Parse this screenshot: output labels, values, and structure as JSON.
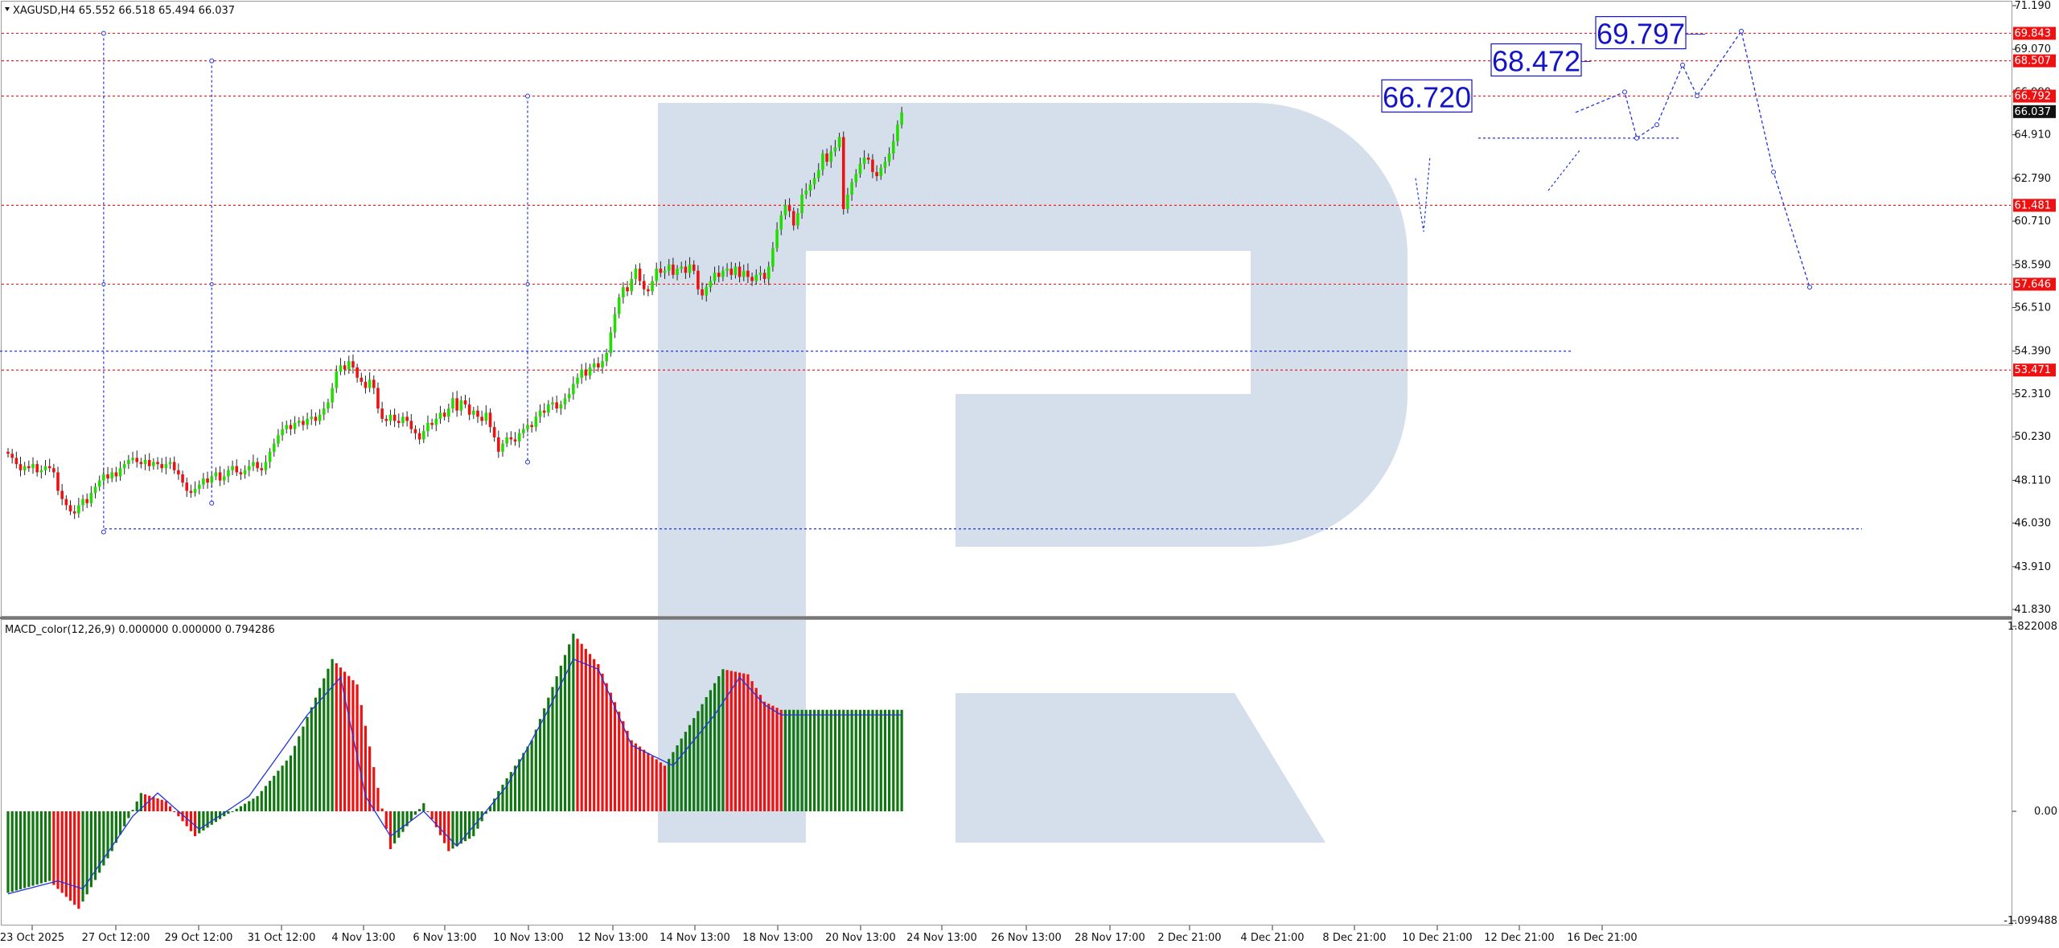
{
  "window": {
    "symbol_header": "XAGUSD,H4  65.552 66.518 65.494 66.037",
    "indicator_header": "MACD_color(12,26,9) 0.000000 0.000000 0.794286"
  },
  "colors": {
    "bull": "#22dd00",
    "bear": "#ee1111",
    "hist_up": "#117711",
    "hist_down": "#ee1111",
    "signal": "#2233dd",
    "level_line": "#ee2222",
    "forecast": "#2233dd",
    "watermark": "#d5dfeb",
    "current_price_bg": "#111111",
    "level_tag_bg": "#ee1111"
  },
  "chart_data": [
    {
      "type": "candlestick",
      "symbol": "XAGUSD",
      "timeframe": "H4",
      "ylim": [
        41.83,
        71.19
      ],
      "y_ticks": [
        "71.190",
        "69.070",
        "66.990",
        "64.910",
        "62.790",
        "60.710",
        "58.590",
        "56.510",
        "54.390",
        "52.310",
        "50.230",
        "48.110",
        "46.030",
        "43.910",
        "41.830"
      ],
      "x_ticks": [
        "23 Oct 2025",
        "27 Oct 12:00",
        "29 Oct 12:00",
        "31 Oct 12:00",
        "4 Nov 13:00",
        "6 Nov 13:00",
        "10 Nov 13:00",
        "12 Nov 13:00",
        "14 Nov 13:00",
        "18 Nov 13:00",
        "20 Nov 13:00",
        "24 Nov 13:00",
        "26 Nov 13:00",
        "28 Nov 17:00",
        "2 Dec 21:00",
        "4 Dec 21:00",
        "8 Dec 21:00",
        "10 Dec 21:00",
        "12 Dec 21:00",
        "16 Dec 21:00"
      ],
      "level_tags": [
        "69.843",
        "68.507",
        "66.792",
        "61.481",
        "57.646",
        "53.471"
      ],
      "current_price": "66.037",
      "closes": [
        49.4,
        49.2,
        48.9,
        48.6,
        48.8,
        48.7,
        48.9,
        48.5,
        48.6,
        48.8,
        48.7,
        48.5,
        47.6,
        47.2,
        46.9,
        46.6,
        46.5,
        46.9,
        47.2,
        47.0,
        47.5,
        47.8,
        48.1,
        48.4,
        48.2,
        48.5,
        48.3,
        48.7,
        48.9,
        49.1,
        49.2,
        49.0,
        48.9,
        49.1,
        48.8,
        49.0,
        48.9,
        48.7,
        48.9,
        49.0,
        48.6,
        48.4,
        48.0,
        47.6,
        47.5,
        47.7,
        47.9,
        48.2,
        48.0,
        48.3,
        48.5,
        48.1,
        48.3,
        48.6,
        48.8,
        48.5,
        48.4,
        48.6,
        48.8,
        49.0,
        48.7,
        48.6,
        49.0,
        49.5,
        49.9,
        50.3,
        50.6,
        50.8,
        50.6,
        50.9,
        51.0,
        50.8,
        51.1,
        51.2,
        51.0,
        51.3,
        51.6,
        51.9,
        52.6,
        53.4,
        53.7,
        53.5,
        53.9,
        53.6,
        53.1,
        52.9,
        52.6,
        53.0,
        52.6,
        51.6,
        51.1,
        51.0,
        51.3,
        51.0,
        50.9,
        51.2,
        51.0,
        50.6,
        50.4,
        50.1,
        50.5,
        50.9,
        50.8,
        51.1,
        51.4,
        51.2,
        51.6,
        52.1,
        51.5,
        52.0,
        51.8,
        51.3,
        51.5,
        51.2,
        51.0,
        51.4,
        50.7,
        50.2,
        49.5,
        49.9,
        50.2,
        50.1,
        50.0,
        50.4,
        50.6,
        50.8,
        50.7,
        51.2,
        51.5,
        51.4,
        51.8,
        51.9,
        51.6,
        51.8,
        52.1,
        52.3,
        52.8,
        53.1,
        53.5,
        53.2,
        53.6,
        53.8,
        53.6,
        53.9,
        54.3,
        55.3,
        56.2,
        57.0,
        57.5,
        57.3,
        57.9,
        58.4,
        57.8,
        57.4,
        57.3,
        57.8,
        58.4,
        58.2,
        58.3,
        58.6,
        58.1,
        58.4,
        58.5,
        58.2,
        58.6,
        58.3,
        57.4,
        57.1,
        57.5,
        57.8,
        58.2,
        58.0,
        58.3,
        58.4,
        58.1,
        58.5,
        58.0,
        58.3,
        58.0,
        57.8,
        58.1,
        58.2,
        57.9,
        58.5,
        59.4,
        60.3,
        61.0,
        61.5,
        61.2,
        60.5,
        61.1,
        62.0,
        62.2,
        62.5,
        62.8,
        63.2,
        64.0,
        63.6,
        64.1,
        64.3,
        64.8,
        61.3,
        62.0,
        62.6,
        63.0,
        63.5,
        63.8,
        63.7,
        63.1,
        62.9,
        63.3,
        63.6,
        64.0,
        64.6,
        65.4,
        66.0
      ]
    },
    {
      "type": "histogram",
      "name": "MACD_color(12,26,9)",
      "ylim": [
        -1.099488,
        1.822008
      ],
      "y_ticks": [
        "1.822008",
        "0.00",
        "-1.099488"
      ],
      "histogram_peak_values": [
        [
          0,
          -0.82
        ],
        [
          10,
          -0.7
        ],
        [
          17,
          -0.98
        ],
        [
          25,
          -0.4
        ],
        [
          32,
          0.18
        ],
        [
          38,
          0.1
        ],
        [
          45,
          -0.25
        ],
        [
          52,
          -0.05
        ],
        [
          60,
          0.15
        ],
        [
          68,
          0.55
        ],
        [
          78,
          1.5
        ],
        [
          84,
          1.25
        ],
        [
          92,
          -0.38
        ],
        [
          100,
          0.08
        ],
        [
          106,
          -0.4
        ],
        [
          112,
          -0.25
        ],
        [
          118,
          0.2
        ],
        [
          126,
          0.7
        ],
        [
          136,
          1.75
        ],
        [
          142,
          1.45
        ],
        [
          150,
          0.7
        ],
        [
          158,
          0.45
        ],
        [
          164,
          0.85
        ],
        [
          172,
          1.4
        ],
        [
          178,
          1.35
        ],
        [
          182,
          1.08
        ],
        [
          186,
          1.0
        ]
      ],
      "signal_values": [
        [
          0,
          -0.83
        ],
        [
          12,
          -0.7
        ],
        [
          18,
          -0.78
        ],
        [
          30,
          -0.05
        ],
        [
          36,
          0.18
        ],
        [
          46,
          -0.18
        ],
        [
          58,
          0.15
        ],
        [
          72,
          0.95
        ],
        [
          80,
          1.32
        ],
        [
          86,
          0.15
        ],
        [
          92,
          -0.25
        ],
        [
          100,
          0.0
        ],
        [
          108,
          -0.35
        ],
        [
          120,
          0.25
        ],
        [
          130,
          1.0
        ],
        [
          136,
          1.5
        ],
        [
          142,
          1.4
        ],
        [
          150,
          0.65
        ],
        [
          160,
          0.45
        ],
        [
          170,
          0.95
        ],
        [
          176,
          1.32
        ],
        [
          182,
          1.05
        ],
        [
          186,
          0.95
        ]
      ]
    }
  ],
  "forecast": {
    "labels": [
      "66.720",
      "68.472",
      "69.797"
    ]
  }
}
